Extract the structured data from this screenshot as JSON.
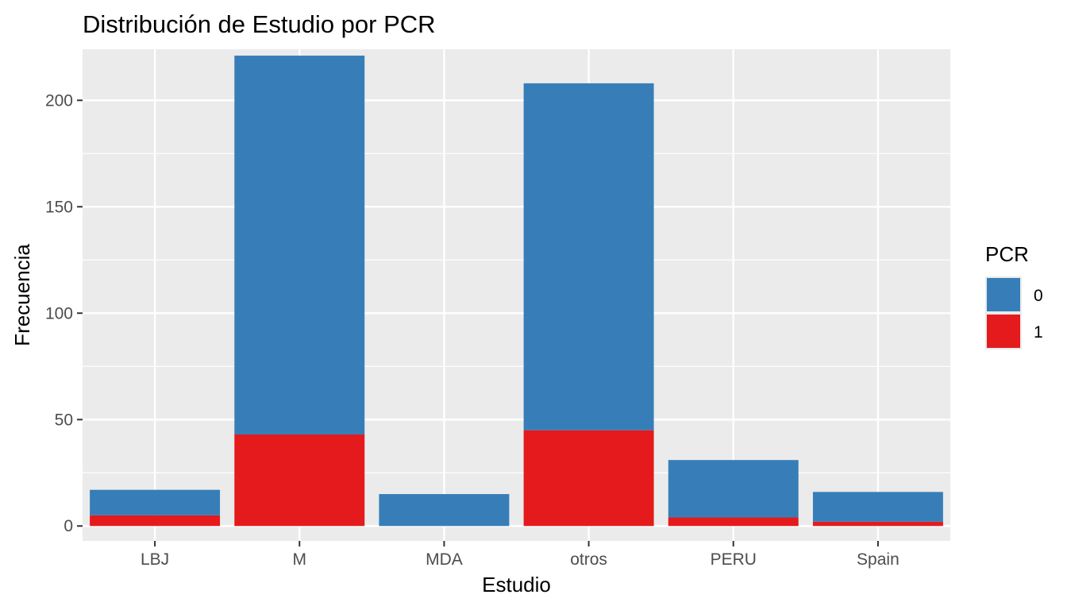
{
  "chart_data": {
    "type": "bar",
    "stacked": true,
    "title": "Distribución de Estudio por PCR",
    "xlabel": "Estudio",
    "ylabel": "Frecuencia",
    "categories": [
      "LBJ",
      "M",
      "MDA",
      "otros",
      "PERU",
      "Spain"
    ],
    "series": [
      {
        "name": "0",
        "color": "#377eb8",
        "values": [
          12,
          178,
          15,
          163,
          27,
          14
        ]
      },
      {
        "name": "1",
        "color": "#e41a1c",
        "values": [
          5,
          43,
          0,
          45,
          4,
          2
        ]
      }
    ],
    "ylim": [
      -7,
      224
    ],
    "yticks": [
      0,
      50,
      100,
      150,
      200
    ],
    "grid": true,
    "legend": {
      "title": "PCR",
      "placement": "right"
    },
    "panel_background": "#ebebeb",
    "grid_color": "#ffffff"
  }
}
